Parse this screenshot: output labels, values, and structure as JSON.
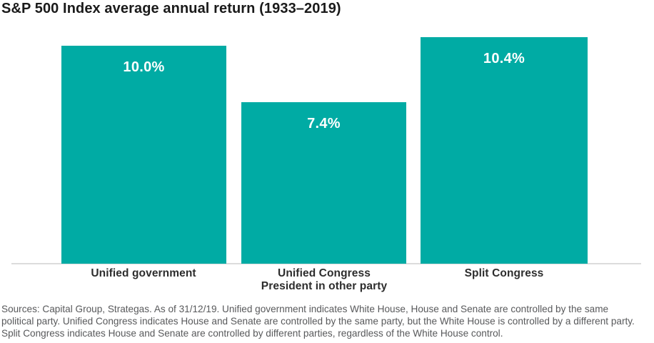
{
  "page": {
    "footer": "Sources: Capital Group, Strategas. As of 31/12/19. Unified government indicates White House, House and Senate are controlled by the same political party. Unified Congress indicates House and Senate are controlled by the same party, but the White House is controlled by a different party. Split Congress indicates House and Senate are controlled by different parties, regardless of the White House control."
  },
  "colors": {
    "bar": "#00aba4",
    "title_text": "#1a1a1a",
    "category_text": "#2d2d2d",
    "footer_text": "#58595b",
    "value_text": "#ffffff",
    "axis_line": "#dcdcdc"
  },
  "chart_data": {
    "type": "bar",
    "title": "S&P 500 Index average annual return (1933–2019)",
    "categories": [
      "Unified government",
      "Unified Congress President in other party",
      "Split Congress"
    ],
    "values": [
      10.0,
      7.4,
      10.4
    ],
    "value_labels": [
      "10.0%",
      "7.4%",
      "10.4%"
    ],
    "xlabel": "",
    "ylabel": "",
    "ylim": [
      0,
      10.4
    ],
    "grid": false,
    "legend": false,
    "baseline_axis": "x",
    "bars": [
      {
        "label1": "Unified government",
        "label2": "",
        "value": 10.0,
        "display": "10.0%"
      },
      {
        "label1": "Unified Congress",
        "label2": "President in other party",
        "value": 7.4,
        "display": "7.4%"
      },
      {
        "label1": "Split Congress",
        "label2": "",
        "value": 10.4,
        "display": "10.4%"
      }
    ]
  }
}
